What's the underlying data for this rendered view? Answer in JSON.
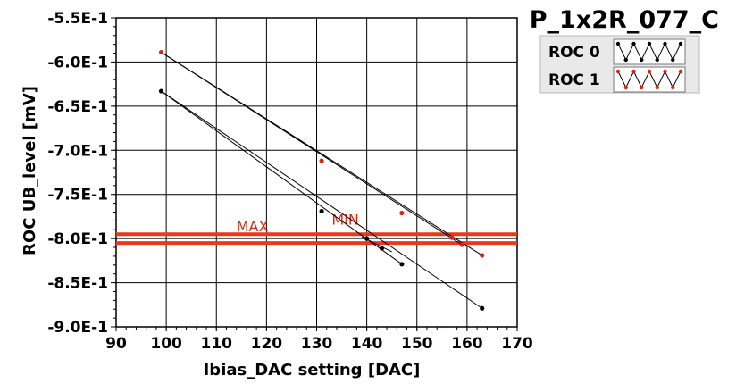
{
  "chart_data": {
    "type": "scatter",
    "title": "P_1x2R_077_C",
    "xlabel": "Ibias_DAC setting [DAC]",
    "ylabel": "ROC UB_level [mV]",
    "xlim": [
      90,
      170
    ],
    "ylim": [
      -0.9,
      -0.55
    ],
    "x_ticks": [
      "90",
      "100",
      "110",
      "120",
      "130",
      "140",
      "150",
      "160",
      "170"
    ],
    "y_ticks": [
      "-5.5E-1",
      "-6.0E-1",
      "-6.5E-1",
      "-7.0E-1",
      "-7.5E-1",
      "-8.0E-1",
      "-8.5E-1",
      "-9.0E-1"
    ],
    "grid": true,
    "legend_position": "top-right",
    "series": [
      {
        "name": "ROC 0",
        "color": "#000000",
        "points": [
          [
            99,
            -0.633
          ],
          [
            131,
            -0.769
          ],
          [
            140,
            -0.8
          ],
          [
            143,
            -0.811
          ],
          [
            147,
            -0.829
          ],
          [
            163,
            -0.879
          ]
        ],
        "fit_lines": [
          [
            [
              99,
              -0.633
            ],
            [
              147,
              -0.829
            ]
          ],
          [
            [
              99,
              -0.633
            ],
            [
              163,
              -0.879
            ]
          ],
          [
            [
              139,
              -0.798
            ],
            [
              145,
              -0.815
            ]
          ]
        ]
      },
      {
        "name": "ROC 1",
        "color": "#e0200c",
        "points": [
          [
            99,
            -0.589
          ],
          [
            131,
            -0.712
          ],
          [
            147,
            -0.771
          ],
          [
            157,
            -0.799
          ],
          [
            159,
            -0.807
          ],
          [
            163,
            -0.819
          ]
        ],
        "fit_lines": [
          [
            [
              99,
              -0.589
            ],
            [
              159,
              -0.807
            ]
          ],
          [
            [
              99,
              -0.589
            ],
            [
              163,
              -0.819
            ]
          ]
        ]
      }
    ],
    "reference_lines": [
      {
        "y": -0.795,
        "color": "#e83a1a"
      },
      {
        "y": -0.805,
        "color": "#e83a1a"
      }
    ],
    "annotations": [
      {
        "text": "MAX",
        "x": 114,
        "y": -0.792,
        "color": "#d42a12"
      },
      {
        "text": "MIN",
        "x": 133,
        "y": -0.784,
        "color": "#d42a12"
      }
    ]
  }
}
